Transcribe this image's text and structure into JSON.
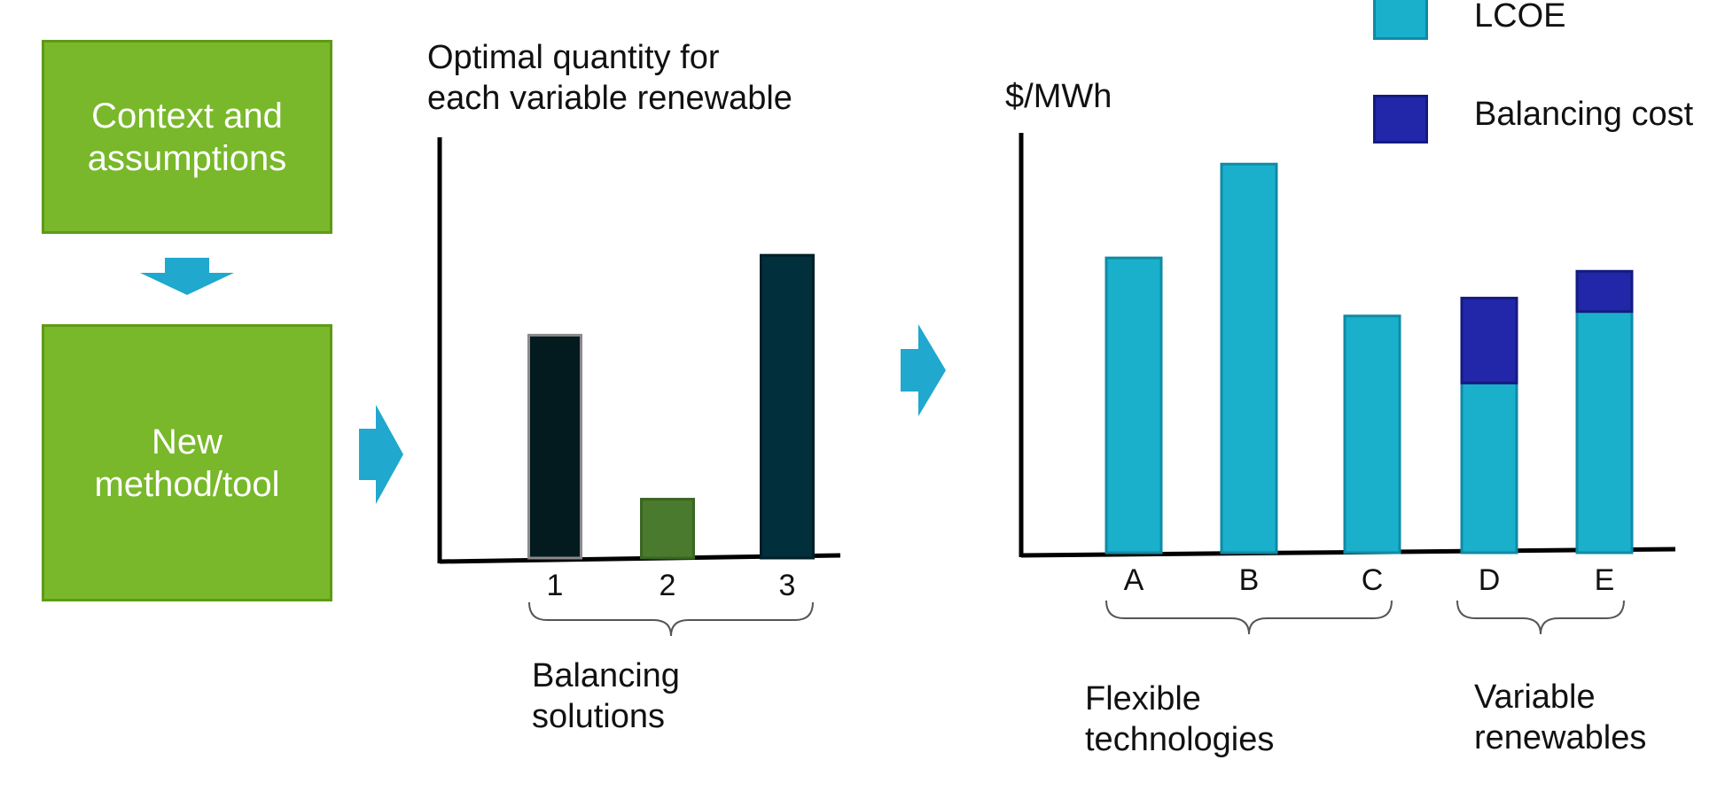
{
  "flow": {
    "box_context": "Context and\nassumptions",
    "box_method": "New\nmethod/tool",
    "arrow_color": "#20a8cf",
    "box_color": "#78b82a"
  },
  "left_chart": {
    "title": "Optimal quantity for\neach variable renewable",
    "categories": [
      "1",
      "2",
      "3"
    ],
    "group_label": "Balancing\nsolutions"
  },
  "right_chart": {
    "ylabel": "$/MWh",
    "categories": [
      "A",
      "B",
      "C",
      "D",
      "E"
    ],
    "group_flexible": "Flexible\ntechnologies",
    "group_variable": "Variable\nrenewables"
  },
  "legend": {
    "lcoe": "LCOE",
    "balancing": "Balancing cost",
    "lcoe_color": "#1ab0cc",
    "balancing_color": "#2127a8"
  },
  "chart_data": [
    {
      "type": "bar",
      "title": "Optimal quantity for each variable renewable",
      "categories": [
        "1",
        "2",
        "3"
      ],
      "values": [
        5.3,
        1.4,
        7.2
      ],
      "ylim": [
        0,
        9.9
      ],
      "colors": [
        "#031a1f",
        "#4a7a2e",
        "#01303c"
      ]
    },
    {
      "type": "bar",
      "stacked": true,
      "ylabel": "$/MWh",
      "categories": [
        "A",
        "B",
        "C",
        "D",
        "E"
      ],
      "ylim": [
        0,
        9.3
      ],
      "series": [
        {
          "name": "LCOE",
          "values": [
            6.6,
            8.7,
            5.3,
            3.8,
            5.4
          ],
          "color": "#1ab0cc"
        },
        {
          "name": "Balancing cost",
          "values": [
            0,
            0,
            0,
            1.9,
            0.9
          ],
          "color": "#2127a8"
        }
      ]
    }
  ]
}
